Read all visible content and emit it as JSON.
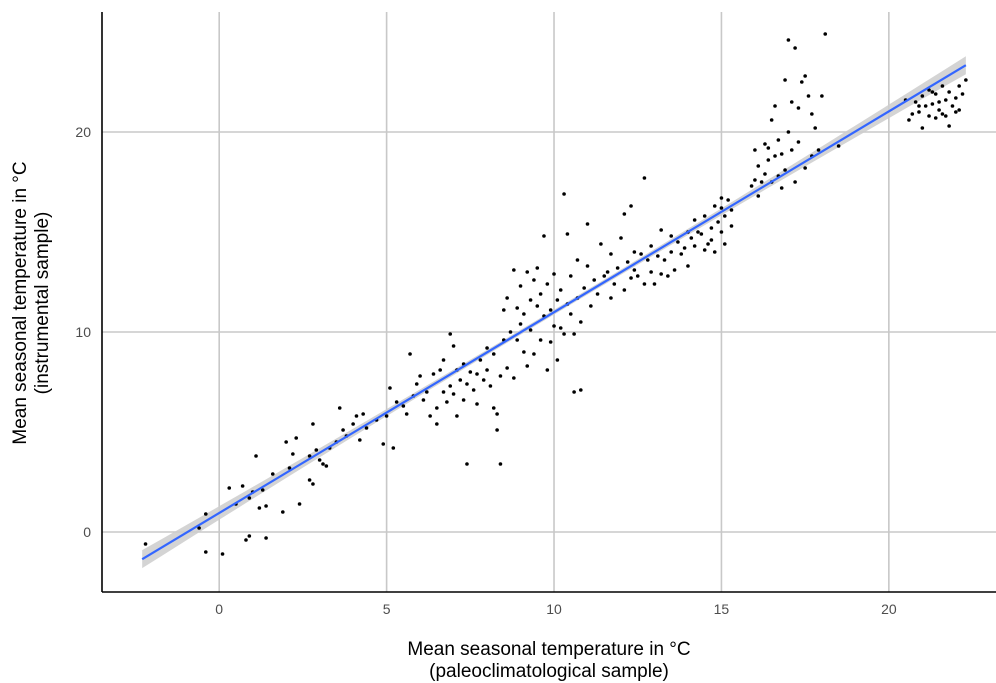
{
  "chart_data": {
    "type": "scatter",
    "title": "",
    "xlabel": [
      "Mean seasonal temperature in °C",
      "(paleoclimatological sample)"
    ],
    "ylabel": [
      "Mean seasonal temperature in °C",
      "(instrumental sample)"
    ],
    "xlim": [
      -3.5,
      23.2
    ],
    "ylim": [
      -3,
      26
    ],
    "x_ticks": [
      0,
      5,
      10,
      15,
      20
    ],
    "y_ticks": [
      0,
      10,
      20
    ],
    "x_tick_labels": [
      "0",
      "5",
      "10",
      "15",
      "20"
    ],
    "y_tick_labels": [
      "0",
      "10",
      "20"
    ],
    "grid": true,
    "legend": "none",
    "colors": {
      "points": "#000000",
      "fit_line": "#3366ff",
      "ci_band": "#cccccc",
      "grid": "#c8c8c8"
    },
    "fit": {
      "method": "linear",
      "intercept": 0.95,
      "slope": 1.004,
      "x_range": [
        -2.3,
        22.3
      ],
      "ci_halfwidth_ends": 0.45,
      "ci_halfwidth_center": 0.12
    },
    "points": [
      [
        -2.2,
        -0.6
      ],
      [
        -0.6,
        0.2
      ],
      [
        -0.4,
        -1.0
      ],
      [
        -0.4,
        0.9
      ],
      [
        0.1,
        -1.1
      ],
      [
        0.3,
        2.2
      ],
      [
        0.5,
        1.4
      ],
      [
        0.7,
        2.3
      ],
      [
        0.8,
        -0.4
      ],
      [
        0.9,
        -0.2
      ],
      [
        0.9,
        1.7
      ],
      [
        1.0,
        2.0
      ],
      [
        1.1,
        3.8
      ],
      [
        1.2,
        1.2
      ],
      [
        1.3,
        2.1
      ],
      [
        1.4,
        1.3
      ],
      [
        1.4,
        -0.3
      ],
      [
        1.6,
        2.9
      ],
      [
        1.9,
        1.0
      ],
      [
        2.0,
        4.5
      ],
      [
        2.1,
        3.2
      ],
      [
        2.2,
        3.9
      ],
      [
        2.3,
        4.7
      ],
      [
        2.4,
        1.4
      ],
      [
        2.7,
        3.8
      ],
      [
        2.7,
        2.6
      ],
      [
        2.8,
        2.4
      ],
      [
        2.8,
        5.4
      ],
      [
        2.9,
        4.1
      ],
      [
        3.0,
        3.6
      ],
      [
        3.1,
        3.4
      ],
      [
        3.2,
        3.3
      ],
      [
        3.3,
        4.2
      ],
      [
        3.5,
        4.5
      ],
      [
        3.6,
        6.2
      ],
      [
        3.7,
        5.1
      ],
      [
        3.8,
        4.8
      ],
      [
        4.0,
        5.4
      ],
      [
        4.1,
        5.8
      ],
      [
        4.2,
        4.6
      ],
      [
        4.3,
        5.9
      ],
      [
        4.4,
        5.2
      ],
      [
        4.7,
        5.6
      ],
      [
        4.9,
        4.4
      ],
      [
        5.0,
        5.8
      ],
      [
        5.1,
        7.2
      ],
      [
        5.2,
        4.2
      ],
      [
        5.3,
        6.5
      ],
      [
        5.5,
        6.3
      ],
      [
        5.6,
        5.9
      ],
      [
        5.7,
        8.9
      ],
      [
        5.8,
        6.8
      ],
      [
        5.9,
        7.4
      ],
      [
        6.0,
        7.8
      ],
      [
        6.1,
        6.6
      ],
      [
        6.2,
        7.0
      ],
      [
        6.3,
        5.8
      ],
      [
        6.4,
        7.9
      ],
      [
        6.5,
        6.2
      ],
      [
        6.5,
        5.4
      ],
      [
        6.6,
        8.1
      ],
      [
        6.7,
        7.0
      ],
      [
        6.7,
        8.6
      ],
      [
        6.8,
        6.5
      ],
      [
        6.9,
        9.9
      ],
      [
        6.9,
        7.3
      ],
      [
        7.0,
        6.9
      ],
      [
        7.0,
        9.3
      ],
      [
        7.1,
        8.1
      ],
      [
        7.1,
        5.8
      ],
      [
        7.2,
        7.6
      ],
      [
        7.3,
        8.4
      ],
      [
        7.3,
        6.6
      ],
      [
        7.4,
        3.4
      ],
      [
        7.4,
        7.4
      ],
      [
        7.5,
        8.0
      ],
      [
        7.6,
        7.1
      ],
      [
        7.7,
        7.9
      ],
      [
        7.7,
        6.4
      ],
      [
        7.8,
        8.6
      ],
      [
        7.9,
        7.6
      ],
      [
        8.0,
        8.1
      ],
      [
        8.0,
        9.2
      ],
      [
        8.1,
        7.3
      ],
      [
        8.2,
        8.9
      ],
      [
        8.2,
        6.2
      ],
      [
        8.3,
        5.9
      ],
      [
        8.3,
        5.1
      ],
      [
        8.4,
        3.4
      ],
      [
        8.4,
        7.8
      ],
      [
        8.5,
        11.1
      ],
      [
        8.5,
        9.6
      ],
      [
        8.6,
        8.2
      ],
      [
        8.6,
        11.7
      ],
      [
        8.7,
        10.0
      ],
      [
        8.8,
        13.1
      ],
      [
        8.8,
        7.7
      ],
      [
        8.9,
        9.6
      ],
      [
        8.9,
        11.2
      ],
      [
        9.0,
        10.4
      ],
      [
        9.0,
        12.3
      ],
      [
        9.1,
        9.0
      ],
      [
        9.1,
        10.9
      ],
      [
        9.2,
        13.0
      ],
      [
        9.2,
        8.3
      ],
      [
        9.3,
        11.6
      ],
      [
        9.3,
        10.1
      ],
      [
        9.4,
        12.6
      ],
      [
        9.4,
        8.9
      ],
      [
        9.5,
        11.3
      ],
      [
        9.5,
        13.2
      ],
      [
        9.6,
        9.6
      ],
      [
        9.6,
        11.9
      ],
      [
        9.7,
        10.8
      ],
      [
        9.7,
        14.8
      ],
      [
        9.8,
        8.1
      ],
      [
        9.8,
        12.4
      ],
      [
        9.9,
        9.5
      ],
      [
        9.9,
        11.1
      ],
      [
        10.0,
        10.3
      ],
      [
        10.0,
        12.9
      ],
      [
        10.1,
        11.6
      ],
      [
        10.1,
        8.6
      ],
      [
        10.2,
        10.2
      ],
      [
        10.2,
        12.1
      ],
      [
        10.3,
        16.9
      ],
      [
        10.3,
        9.9
      ],
      [
        10.4,
        11.4
      ],
      [
        10.4,
        14.9
      ],
      [
        10.5,
        10.9
      ],
      [
        10.5,
        12.8
      ],
      [
        10.6,
        7.0
      ],
      [
        10.6,
        9.9
      ],
      [
        10.7,
        11.7
      ],
      [
        10.7,
        13.6
      ],
      [
        10.8,
        7.1
      ],
      [
        10.8,
        10.5
      ],
      [
        10.9,
        12.2
      ],
      [
        11.0,
        15.4
      ],
      [
        11.0,
        13.3
      ],
      [
        11.1,
        11.3
      ],
      [
        11.2,
        12.6
      ],
      [
        11.3,
        11.9
      ],
      [
        11.4,
        14.4
      ],
      [
        11.5,
        12.8
      ],
      [
        11.6,
        13.0
      ],
      [
        11.7,
        11.7
      ],
      [
        11.7,
        13.9
      ],
      [
        11.8,
        12.4
      ],
      [
        11.9,
        13.2
      ],
      [
        12.0,
        14.7
      ],
      [
        12.1,
        12.1
      ],
      [
        12.1,
        15.9
      ],
      [
        12.2,
        13.5
      ],
      [
        12.3,
        12.7
      ],
      [
        12.3,
        16.3
      ],
      [
        12.4,
        14.0
      ],
      [
        12.4,
        13.1
      ],
      [
        12.5,
        12.8
      ],
      [
        12.6,
        13.9
      ],
      [
        12.7,
        12.4
      ],
      [
        12.7,
        17.7
      ],
      [
        12.8,
        13.6
      ],
      [
        12.9,
        14.3
      ],
      [
        12.9,
        13.0
      ],
      [
        13.0,
        12.4
      ],
      [
        13.1,
        13.8
      ],
      [
        13.2,
        15.1
      ],
      [
        13.2,
        12.9
      ],
      [
        13.3,
        13.6
      ],
      [
        13.4,
        12.8
      ],
      [
        13.5,
        14.8
      ],
      [
        13.5,
        14.0
      ],
      [
        13.6,
        13.1
      ],
      [
        13.7,
        14.5
      ],
      [
        13.8,
        13.9
      ],
      [
        13.9,
        14.2
      ],
      [
        14.0,
        15.0
      ],
      [
        14.0,
        13.3
      ],
      [
        14.1,
        14.7
      ],
      [
        14.2,
        14.3
      ],
      [
        14.2,
        15.6
      ],
      [
        14.3,
        15.0
      ],
      [
        14.4,
        14.9
      ],
      [
        14.5,
        14.1
      ],
      [
        14.5,
        15.8
      ],
      [
        14.6,
        14.4
      ],
      [
        14.7,
        15.2
      ],
      [
        14.7,
        14.6
      ],
      [
        14.8,
        16.3
      ],
      [
        14.8,
        14.0
      ],
      [
        14.9,
        15.5
      ],
      [
        15.0,
        16.2
      ],
      [
        15.0,
        15.0
      ],
      [
        15.0,
        16.7
      ],
      [
        15.1,
        14.4
      ],
      [
        15.1,
        15.8
      ],
      [
        15.2,
        16.6
      ],
      [
        15.3,
        16.1
      ],
      [
        15.3,
        15.3
      ],
      [
        15.9,
        17.3
      ],
      [
        16.0,
        17.6
      ],
      [
        16.0,
        19.1
      ],
      [
        16.1,
        16.8
      ],
      [
        16.1,
        18.3
      ],
      [
        16.2,
        17.5
      ],
      [
        16.3,
        19.4
      ],
      [
        16.3,
        17.9
      ],
      [
        16.4,
        18.6
      ],
      [
        16.4,
        19.2
      ],
      [
        16.5,
        17.5
      ],
      [
        16.5,
        20.6
      ],
      [
        16.6,
        18.8
      ],
      [
        16.6,
        21.3
      ],
      [
        16.7,
        17.8
      ],
      [
        16.7,
        19.6
      ],
      [
        16.8,
        17.2
      ],
      [
        16.8,
        18.9
      ],
      [
        16.9,
        18.1
      ],
      [
        16.9,
        22.6
      ],
      [
        17.0,
        20.0
      ],
      [
        17.0,
        24.6
      ],
      [
        17.1,
        21.5
      ],
      [
        17.1,
        19.1
      ],
      [
        17.2,
        24.2
      ],
      [
        17.2,
        17.5
      ],
      [
        17.3,
        21.2
      ],
      [
        17.3,
        19.5
      ],
      [
        17.4,
        22.5
      ],
      [
        17.5,
        22.8
      ],
      [
        17.5,
        18.2
      ],
      [
        17.6,
        21.8
      ],
      [
        17.7,
        20.9
      ],
      [
        17.7,
        18.8
      ],
      [
        17.8,
        20.2
      ],
      [
        17.9,
        19.1
      ],
      [
        18.0,
        21.8
      ],
      [
        18.1,
        24.9
      ],
      [
        18.5,
        19.3
      ],
      [
        20.5,
        21.6
      ],
      [
        20.6,
        20.6
      ],
      [
        20.7,
        20.9
      ],
      [
        20.8,
        21.5
      ],
      [
        20.9,
        21.0
      ],
      [
        21.0,
        21.8
      ],
      [
        21.0,
        20.2
      ],
      [
        21.1,
        21.3
      ],
      [
        21.2,
        20.8
      ],
      [
        21.2,
        22.1
      ],
      [
        21.3,
        21.4
      ],
      [
        21.4,
        20.7
      ],
      [
        21.4,
        21.9
      ],
      [
        21.5,
        21.1
      ],
      [
        21.6,
        22.3
      ],
      [
        21.6,
        20.9
      ],
      [
        21.7,
        21.6
      ],
      [
        21.8,
        22.0
      ],
      [
        21.8,
        20.3
      ],
      [
        21.9,
        21.3
      ],
      [
        22.0,
        21.7
      ],
      [
        22.1,
        22.3
      ],
      [
        22.1,
        21.1
      ],
      [
        22.2,
        21.9
      ],
      [
        22.3,
        22.6
      ],
      [
        22.0,
        21.0
      ],
      [
        21.5,
        21.5
      ],
      [
        21.3,
        22.0
      ],
      [
        20.9,
        21.3
      ],
      [
        21.7,
        20.8
      ]
    ]
  }
}
